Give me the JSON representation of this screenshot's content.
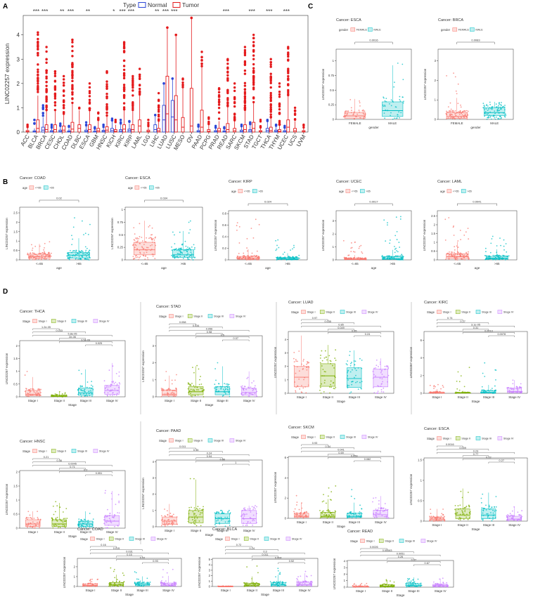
{
  "colors": {
    "normal": "#2b46d6",
    "tumor": "#e41a1c",
    "low": "#f8766d",
    "high": "#00bfc4",
    "stage1": "#f8766d",
    "stage2": "#7cae00",
    "stage3": "#00bfc4",
    "stage4": "#c77cff",
    "grid": "#ebebeb"
  },
  "panel_letters": [
    "A",
    "B",
    "C",
    "D"
  ],
  "chart_data": [
    {
      "panel": "A",
      "type": "box",
      "legend_title": "Type",
      "legend": [
        "Normal",
        "Tumor"
      ],
      "ylabel": "LINC02257 expression",
      "ylim": [
        0,
        4.8
      ],
      "yticks": [
        0,
        1,
        2,
        3,
        4
      ],
      "categories": [
        "ACC",
        "BLCA",
        "BRCA",
        "CESC",
        "CHOL",
        "COAD",
        "DLBC",
        "ESCA",
        "GBM",
        "HNSC",
        "KICH",
        "KIRC",
        "KIRP",
        "LAML",
        "LGG",
        "LIHC",
        "LUAD",
        "LUSC",
        "MESO",
        "OV",
        "PAAD",
        "PCPG",
        "PRAD",
        "READ",
        "SARC",
        "SKCM",
        "STAD",
        "TGCT",
        "THCA",
        "THYM",
        "UCEC",
        "UCS",
        "UVM"
      ],
      "significance": [
        "",
        "***",
        "***",
        "",
        "**",
        "***",
        "",
        "**",
        "",
        "",
        "*",
        "***",
        "***",
        "",
        "",
        "**",
        "***",
        "***",
        "",
        "",
        "",
        "",
        "",
        "***",
        "",
        "",
        "***",
        "",
        "***",
        "",
        "***",
        "",
        ""
      ],
      "normal_median": [
        null,
        0.02,
        0.08,
        0.02,
        0.03,
        0.02,
        null,
        0.03,
        0.01,
        0.03,
        0.06,
        0.04,
        0.06,
        null,
        null,
        0.1,
        0.5,
        0.62,
        null,
        null,
        0.02,
        null,
        0.02,
        0.02,
        null,
        0.03,
        0.05,
        null,
        0.06,
        0.03,
        0.02,
        null,
        null
      ],
      "normal_q3": [
        null,
        0.05,
        0.2,
        0.06,
        0.08,
        0.05,
        null,
        0.08,
        0.04,
        0.07,
        0.15,
        0.1,
        0.12,
        null,
        null,
        0.3,
        1.1,
        1.3,
        null,
        null,
        0.06,
        null,
        0.06,
        0.05,
        null,
        0.08,
        0.1,
        null,
        0.15,
        0.08,
        0.06,
        null,
        null
      ],
      "normal_max": [
        null,
        0.5,
        1.1,
        0.3,
        0.35,
        0.25,
        null,
        0.4,
        0.2,
        0.3,
        0.55,
        0.5,
        0.45,
        null,
        null,
        0.7,
        2.0,
        2.2,
        null,
        null,
        0.3,
        null,
        0.25,
        0.2,
        null,
        0.3,
        0.4,
        null,
        0.5,
        0.3,
        0.25,
        null,
        null
      ],
      "tumor_median": [
        0.02,
        0.15,
        0.1,
        0.1,
        0.08,
        0.12,
        0.15,
        0.1,
        0.05,
        0.08,
        0.03,
        0.12,
        0.1,
        0.25,
        0.03,
        0.05,
        0.75,
        0.5,
        0.2,
        0.25,
        0.2,
        0.03,
        0.05,
        0.1,
        0.05,
        0.1,
        0.15,
        0.02,
        0.06,
        0.03,
        0.2,
        0.05,
        0.02
      ],
      "tumor_q3": [
        0.06,
        0.5,
        0.3,
        0.3,
        0.25,
        0.4,
        0.3,
        0.3,
        0.15,
        0.22,
        0.1,
        0.3,
        0.3,
        0.5,
        0.08,
        0.15,
        2.3,
        1.5,
        0.6,
        1.8,
        0.9,
        0.1,
        0.15,
        0.35,
        0.15,
        0.3,
        0.4,
        0.06,
        0.2,
        0.1,
        0.5,
        0.15,
        0.06
      ],
      "tumor_max": [
        0.3,
        4.1,
        3.5,
        2.5,
        2.3,
        3.8,
        1.0,
        2.0,
        0.8,
        2.5,
        0.5,
        3.7,
        2.3,
        2.6,
        0.5,
        1.6,
        4.3,
        4.0,
        2.2,
        4.7,
        3.3,
        0.6,
        1.8,
        3.0,
        2.0,
        3.5,
        4.0,
        0.5,
        3.0,
        2.0,
        3.5,
        1.0,
        0.3
      ]
    },
    {
      "panel": "B",
      "type": "box",
      "group_title": "age",
      "groups": [
        "<=65",
        ">65"
      ],
      "ylabel": "LINC02257 expression",
      "xlabel": "age",
      "charts": [
        {
          "title": "Cancer: COAD",
          "ymax": 2.8,
          "yticks": [
            0,
            0.5,
            1,
            1.5,
            2,
            2.5
          ],
          "p": "0.02",
          "median": [
            0.18,
            0.25
          ],
          "q1": [
            0.08,
            0.1
          ],
          "q3": [
            0.3,
            0.4
          ],
          "max": [
            1.0,
            2.6
          ]
        },
        {
          "title": "Cancer: ESCA",
          "ymax": 1.05,
          "yticks": [
            0,
            0.25,
            0.5,
            0.75,
            1
          ],
          "p": "0.034",
          "median": [
            0.2,
            0.1
          ],
          "q1": [
            0.1,
            0.05
          ],
          "q3": [
            0.35,
            0.2
          ],
          "max": [
            0.78,
            0.78
          ]
        },
        {
          "title": "Cancer: KIRP",
          "ymax": 0.85,
          "yticks": [
            0,
            0.2,
            0.4,
            0.6,
            0.8
          ],
          "p": "0.024",
          "median": [
            0.03,
            0.02
          ],
          "q1": [
            0.01,
            0.01
          ],
          "q3": [
            0.06,
            0.04
          ],
          "max": [
            0.8,
            0.35
          ]
        },
        {
          "title": "Cancer: UCEC",
          "ymax": 3.8,
          "yticks": [
            0,
            1,
            2,
            3
          ],
          "p": "0.0017",
          "median": [
            0.05,
            0.1
          ],
          "q1": [
            0.02,
            0.04
          ],
          "q3": [
            0.12,
            0.25
          ],
          "max": [
            1.5,
            3.5
          ]
        },
        {
          "title": "Cancer: LAML",
          "ymax": 2.8,
          "yticks": [
            0,
            0.5,
            1,
            1.5,
            2,
            2.5
          ],
          "p": "0.0041",
          "median": [
            0.18,
            0.1
          ],
          "q1": [
            0.08,
            0.04
          ],
          "q3": [
            0.35,
            0.2
          ],
          "max": [
            2.4,
            1.4
          ]
        }
      ]
    },
    {
      "panel": "C",
      "type": "box",
      "group_title": "gender",
      "groups": [
        "FEMALE",
        "MALE"
      ],
      "ylabel": "LINC02257 expression",
      "xlabel": "gender",
      "charts": [
        {
          "title": "Cancer: ESCA",
          "ymax": 1.2,
          "yticks": [
            0,
            0.25,
            0.5,
            0.75,
            1
          ],
          "p": "0.0016",
          "median": [
            0.06,
            0.15
          ],
          "q1": [
            0.02,
            0.05
          ],
          "q3": [
            0.12,
            0.3
          ],
          "max": [
            0.35,
            1.1
          ]
        },
        {
          "title": "Cancer: BRCA",
          "ymax": 3.6,
          "yticks": [
            0,
            1,
            2,
            3
          ],
          "p": "0.0083",
          "median": [
            0.15,
            0.35
          ],
          "q1": [
            0.05,
            0.2
          ],
          "q3": [
            0.35,
            0.6
          ],
          "max": [
            2.5,
            0.9
          ]
        }
      ]
    },
    {
      "panel": "D",
      "type": "box",
      "group_title": "Stage",
      "groups": [
        "Stage I",
        "Stage II",
        "Stage III",
        "Stage IV"
      ],
      "ylabel": "LINC02257 expression",
      "xlabel": "Stage",
      "charts": [
        {
          "title": "Cancer: THCA",
          "ymax": 2.2,
          "yticks": [
            0,
            0.5,
            1,
            1.5,
            2
          ],
          "pvals": [
            "1.2e-05",
            "0.033",
            "5.8e-05",
            "2e-06",
            "3.5e-09",
            "0.025"
          ],
          "median": [
            0.1,
            0.03,
            0.15,
            0.25
          ],
          "q3": [
            0.25,
            0.06,
            0.35,
            0.45
          ],
          "max": [
            1.3,
            0.2,
            1.2,
            1.5
          ]
        },
        {
          "title": "Cancer: STAD",
          "ymax": 3.6,
          "yticks": [
            0,
            1,
            2,
            3
          ],
          "pvals": [
            "0.058",
            "0.034",
            "0.056",
            "0.98",
            "0.5",
            "0.07"
          ],
          "median": [
            0.15,
            0.3,
            0.3,
            0.25
          ],
          "q3": [
            0.4,
            0.6,
            0.6,
            0.5
          ],
          "max": [
            2.1,
            2.0,
            2.3,
            1.5
          ]
        },
        {
          "title": "Cancer: LUAD",
          "ymax": 4.6,
          "yticks": [
            0,
            1,
            2,
            3,
            4
          ],
          "pvals": [
            "0.97",
            "0.035",
            "0.85",
            "0.049",
            "0.95",
            "0.24"
          ],
          "median": [
            1.2,
            1.3,
            1.1,
            1.2
          ],
          "q3": [
            2.0,
            2.2,
            1.9,
            1.8
          ],
          "max": [
            4.3,
            3.6,
            3.2,
            2.6
          ]
        },
        {
          "title": "Cancer: KIRC",
          "ymax": 7.0,
          "yticks": [
            0,
            2,
            4,
            6
          ],
          "pvals": [
            "0.74",
            "0.27",
            "3.1e-05",
            "0.31",
            "0.0013",
            "0.0078"
          ],
          "median": [
            0.05,
            0.05,
            0.1,
            0.2
          ],
          "q3": [
            0.15,
            0.1,
            0.3,
            0.6
          ],
          "max": [
            1.0,
            3.0,
            3.8,
            1.5
          ]
        },
        {
          "title": "Cancer: HNSC",
          "ymax": 2.05,
          "yticks": [
            0,
            0.5,
            1,
            1.5,
            2
          ],
          "pvals": [
            "0.21",
            "0.46",
            "0.0045",
            "0.71",
            "0.2",
            "0.051"
          ],
          "median": [
            0.15,
            0.15,
            0.15,
            0.25
          ],
          "q3": [
            0.3,
            0.3,
            0.25,
            0.45
          ],
          "max": [
            0.6,
            1.1,
            0.6,
            1.5
          ]
        },
        {
          "title": "Cancer: PAAD",
          "ymax": 4.1,
          "yticks": [
            0,
            1,
            2,
            3,
            4
          ],
          "pvals": [
            "0.011",
            "0.35",
            "0.24",
            "0.94",
            "0.86",
            "1"
          ],
          "median": [
            0.35,
            0.6,
            0.5,
            0.5
          ],
          "q3": [
            0.6,
            1.0,
            0.8,
            1.0
          ],
          "max": [
            1.4,
            3.0,
            1.0,
            1.3
          ]
        },
        {
          "title": "Cancer: SKCM",
          "ymax": 6.1,
          "yticks": [
            0,
            2,
            4,
            6
          ],
          "pvals": [
            "0.93",
            "0.54",
            "0.041",
            "0.69",
            "0.059",
            "0.082"
          ],
          "median": [
            0.2,
            0.2,
            0.2,
            0.35
          ],
          "q3": [
            0.5,
            0.6,
            0.5,
            0.8
          ],
          "max": [
            2.5,
            3.2,
            3.0,
            2.2
          ]
        },
        {
          "title": "Cancer: ESCA",
          "ymax": 1.55,
          "yticks": [
            0,
            0.5,
            1,
            1.5
          ],
          "pvals": [
            "0.0016",
            "0.009",
            "0.23",
            "0.77",
            "0.22",
            "0.27"
          ],
          "median": [
            0.05,
            0.15,
            0.15,
            0.05
          ],
          "q3": [
            0.1,
            0.3,
            0.3,
            0.12
          ],
          "max": [
            0.3,
            0.8,
            0.7,
            0.35
          ]
        },
        {
          "title": "Cancer: COAD",
          "ymax": 2.85,
          "yticks": [
            0,
            1,
            2
          ],
          "pvals": [
            "0.16",
            "0.015",
            "0.031",
            "0.15",
            "0.22",
            "0.93"
          ],
          "median": [
            0.1,
            0.2,
            0.2,
            0.15
          ],
          "q3": [
            0.25,
            0.4,
            0.35,
            0.35
          ],
          "max": [
            0.9,
            2.1,
            1.5,
            1.8
          ]
        },
        {
          "title": "Cancer: BLCA",
          "ymax": 5.2,
          "yticks": [
            0,
            1,
            2,
            3,
            4,
            5
          ],
          "pvals": [
            "0.72",
            "0.24",
            "0.3",
            "0.011",
            "0.004",
            "0.52"
          ],
          "median": [
            0.02,
            0.25,
            0.3,
            0.35
          ],
          "q3": [
            0.04,
            0.6,
            0.7,
            0.8
          ],
          "max": [
            0.1,
            3.8,
            3.5,
            3.0
          ]
        },
        {
          "title": "Cancer: READ",
          "ymax": 4.1,
          "yticks": [
            0,
            1,
            2,
            3,
            4
          ],
          "pvals": [
            "0.0026",
            "0.00063",
            "0.0051",
            "0.26",
            "0.07",
            "0.67"
          ],
          "median": [
            0.05,
            0.15,
            0.25,
            0.25
          ],
          "q3": [
            0.15,
            0.35,
            0.55,
            0.45
          ],
          "max": [
            0.7,
            1.3,
            1.5,
            1.5
          ]
        }
      ]
    }
  ]
}
